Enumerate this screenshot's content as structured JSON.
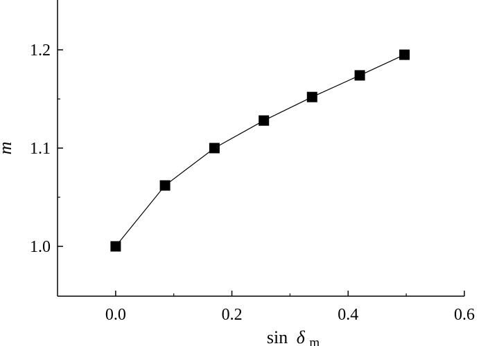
{
  "chart_data": {
    "type": "line",
    "x": [
      0.0,
      0.085,
      0.17,
      0.255,
      0.338,
      0.42,
      0.497
    ],
    "series": [
      {
        "values": [
          1.0,
          1.062,
          1.1,
          1.128,
          1.152,
          1.174,
          1.195
        ]
      }
    ],
    "xlabel": {
      "prefix": "sin",
      "symbol": "δ",
      "subscript": "m"
    },
    "ylabel": "m",
    "xlim": [
      -0.1,
      0.6
    ],
    "ylim": [
      0.96,
      1.25
    ],
    "xticks": [
      0.0,
      0.2,
      0.4,
      0.6
    ],
    "xtick_labels": [
      "0.0",
      "0.2",
      "0.4",
      "0.6"
    ],
    "yticks": [
      1.0,
      1.1,
      1.2
    ],
    "ytick_labels": [
      "1.0",
      "1.1",
      "1.2"
    ],
    "grid": false,
    "marker": "square",
    "colors": {
      "line": "#000000",
      "marker": "#000000"
    }
  }
}
